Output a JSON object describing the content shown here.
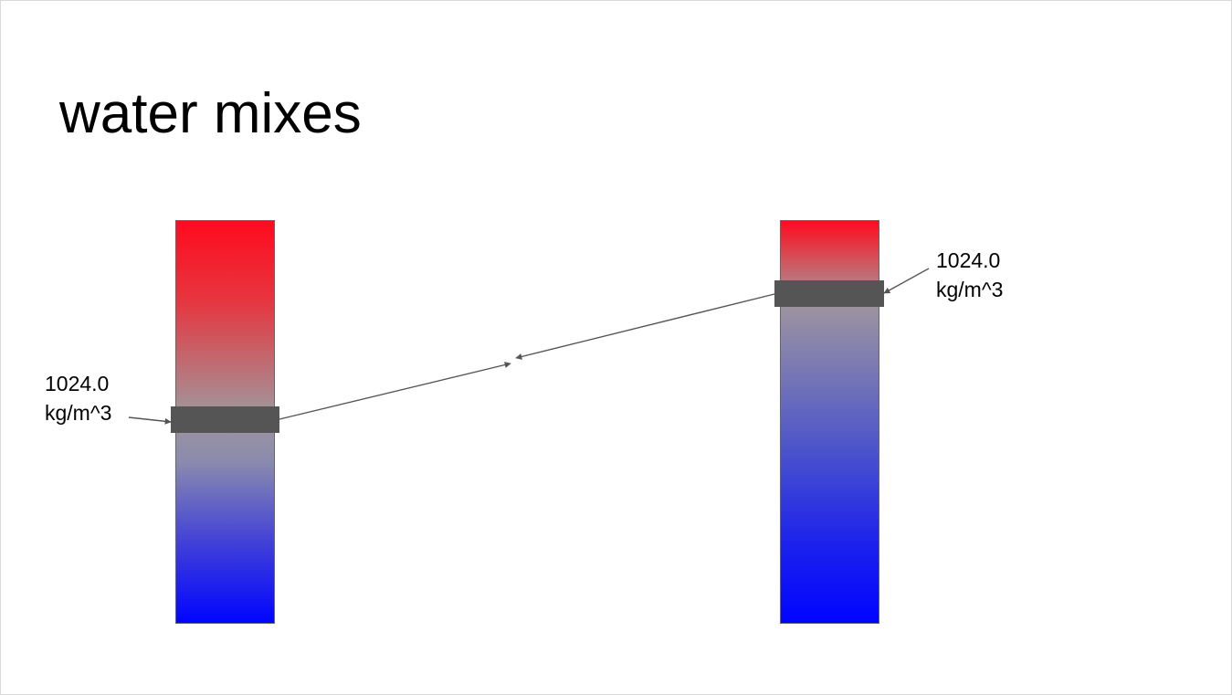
{
  "slide": {
    "title": "water mixes"
  },
  "left_column": {
    "density_value": "1024.0",
    "density_unit": "kg/m^3"
  },
  "right_column": {
    "density_value": "1024.0",
    "density_unit": "kg/m^3"
  },
  "colors": {
    "warm_top": "#ff0a1e",
    "mid_gray": "#9a96a3",
    "cold_bottom": "#0004ff",
    "density_band": "#555555",
    "arrow": "#555555"
  }
}
